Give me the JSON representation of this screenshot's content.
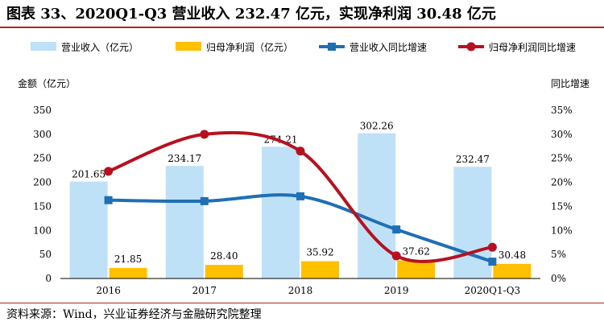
{
  "title": "图表 33、2020Q1-Q3 营业收入 232.47 亿元，实现净利润 30.48 亿元",
  "source": "资料来源：Wind，兴业证券经济与金融研究院整理",
  "colors": {
    "revenue": "#bfe1f7",
    "profit": "#ffc000",
    "revenue_growth": "#1f6fb5",
    "profit_growth": "#b7111f",
    "rule": "#b22222"
  },
  "chart_data": {
    "type": "bar",
    "categories": [
      "2016",
      "2017",
      "2018",
      "2019",
      "2020Q1-Q3"
    ],
    "left_axis_title": "金额（亿元）",
    "right_axis_title": "同比增速",
    "ylim": [
      0,
      350
    ],
    "y_ticks": [
      "0",
      "50",
      "100",
      "150",
      "200",
      "250",
      "300",
      "350"
    ],
    "y2lim": [
      0,
      35
    ],
    "y2_ticks": [
      "0%",
      "5%",
      "10%",
      "15%",
      "20%",
      "25%",
      "30%",
      "35%"
    ],
    "legend_position": "top",
    "grid": false,
    "series": [
      {
        "name": "营业收入（亿元）",
        "kind": "bar",
        "axis": "left",
        "values": [
          201.65,
          234.17,
          274.21,
          302.26,
          232.47
        ],
        "labels": [
          "201.65",
          "234.17",
          "274.21",
          "302.26",
          "232.47"
        ]
      },
      {
        "name": "归母净利润（亿元）",
        "kind": "bar",
        "axis": "left",
        "values": [
          21.85,
          28.4,
          35.92,
          37.62,
          30.48
        ],
        "labels": [
          "21.85",
          "28.40",
          "35.92",
          "37.62",
          "30.48"
        ]
      },
      {
        "name": "营业收入同比增速",
        "kind": "line",
        "axis": "right",
        "values": [
          16.3,
          16.1,
          17.1,
          10.2,
          3.5
        ]
      },
      {
        "name": "归母净利润同比增速",
        "kind": "line",
        "axis": "right",
        "values": [
          22.3,
          30.0,
          26.5,
          4.7,
          6.5
        ]
      }
    ]
  }
}
